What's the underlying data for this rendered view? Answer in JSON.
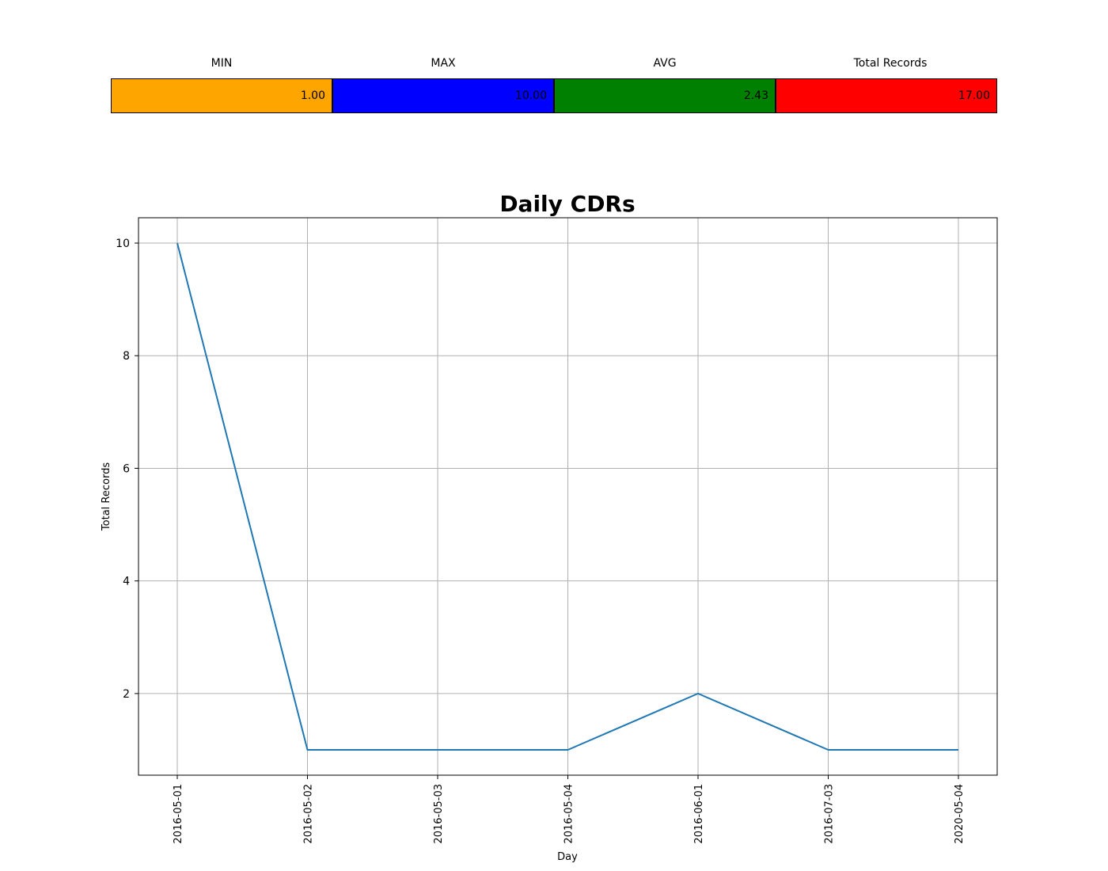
{
  "summary": {
    "columns": [
      {
        "label": "MIN",
        "value": "1.00",
        "color": "#ffa500"
      },
      {
        "label": "MAX",
        "value": "10.00",
        "color": "#0000ff"
      },
      {
        "label": "AVG",
        "value": "2.43",
        "color": "#008000"
      },
      {
        "label": "Total Records",
        "value": "17.00",
        "color": "#ff0000"
      }
    ]
  },
  "chart_data": {
    "type": "line",
    "title": "Daily CDRs",
    "xlabel": "Day",
    "ylabel": "Total Records",
    "categories": [
      "2016-05-01",
      "2016-05-02",
      "2016-05-03",
      "2016-05-04",
      "2016-06-01",
      "2016-07-03",
      "2020-05-04"
    ],
    "series": [
      {
        "values": [
          10,
          1,
          1,
          1,
          2,
          1,
          1
        ],
        "color": "#1f77b4"
      }
    ],
    "yticks": [
      2,
      4,
      6,
      8,
      10
    ],
    "ylim": [
      0.55,
      10.45
    ],
    "grid": true
  }
}
